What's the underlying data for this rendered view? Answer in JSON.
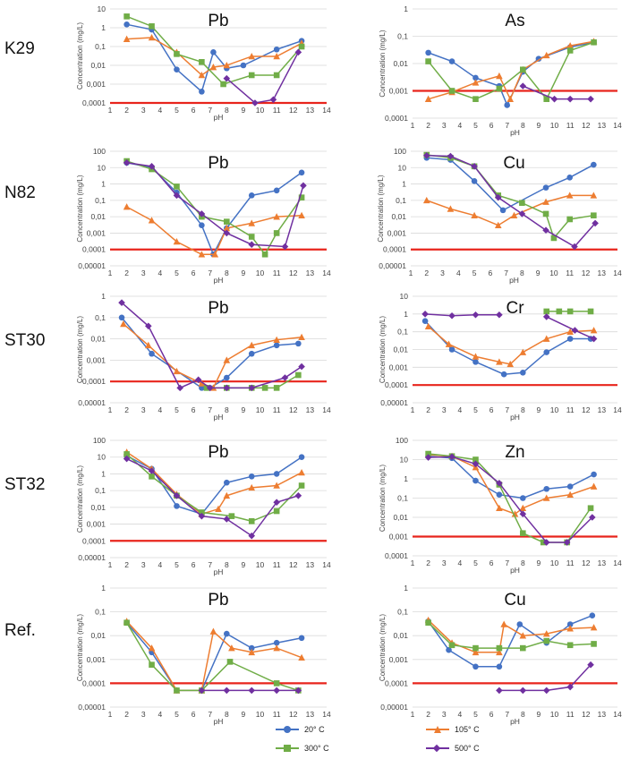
{
  "figure": {
    "row_labels": [
      "K29",
      "N82",
      "ST30",
      "ST32",
      "Ref."
    ],
    "threshold_color": "#e8241c",
    "legend": [
      {
        "key": "c20",
        "label": "20° C",
        "color": "#4472c4",
        "marker": "circle"
      },
      {
        "key": "c105",
        "label": "105° C",
        "color": "#ed7d31",
        "marker": "triangle"
      },
      {
        "key": "c300",
        "label": "300° C",
        "color": "#70ad47",
        "marker": "square"
      },
      {
        "key": "c500",
        "label": "500° C",
        "color": "#7030a0",
        "marker": "diamond"
      }
    ]
  },
  "chart_data": [
    {
      "type": "line",
      "sample": "K29",
      "element": "Pb",
      "xlabel": "pH",
      "ylabel": "Concentration (mg/L)",
      "xlim": [
        1,
        14
      ],
      "y_ticks": [
        "10",
        "1",
        "0,1",
        "0,01",
        "0,001",
        "0,0001"
      ],
      "y_exp": [
        1,
        -4
      ],
      "threshold": 0.0001,
      "series": [
        {
          "key": "c20",
          "x": [
            2,
            3.5,
            5,
            6.5,
            7.2,
            8,
            9,
            11,
            12.5
          ],
          "y": [
            1.5,
            0.8,
            0.006,
            0.0004,
            0.05,
            0.007,
            0.01,
            0.07,
            0.2
          ]
        },
        {
          "key": "c105",
          "x": [
            2,
            3.5,
            5,
            6.5,
            7.2,
            8,
            9.5,
            11,
            12.5
          ],
          "y": [
            0.25,
            0.3,
            0.05,
            0.003,
            0.008,
            0.01,
            0.03,
            0.03,
            0.15
          ]
        },
        {
          "key": "c300",
          "x": [
            2,
            3.5,
            5,
            6.5,
            7.8,
            9.5,
            11,
            12.5
          ],
          "y": [
            4,
            1.2,
            0.04,
            0.015,
            0.001,
            0.003,
            0.003,
            0.1
          ]
        },
        {
          "key": "c500",
          "x": [
            8,
            9.7,
            10.8,
            12.3
          ],
          "y": [
            0.002,
            0.0001,
            0.00015,
            0.05
          ]
        }
      ]
    },
    {
      "type": "line",
      "sample": "K29",
      "element": "As",
      "xlabel": "pH",
      "ylabel": "Concentration (mg/L)",
      "xlim": [
        1,
        14
      ],
      "y_ticks": [
        "1",
        "0,1",
        "0,01",
        "0,001",
        "0,0001"
      ],
      "y_exp": [
        0,
        -4
      ],
      "threshold": 0.001,
      "series": [
        {
          "key": "c20",
          "x": [
            2,
            3.5,
            5,
            6.5,
            7,
            8,
            9,
            11,
            12.5
          ],
          "y": [
            0.025,
            0.012,
            0.003,
            0.0015,
            0.0003,
            0.005,
            0.015,
            0.04,
            0.06
          ]
        },
        {
          "key": "c105",
          "x": [
            2,
            3.5,
            5,
            6.5,
            7.2,
            8,
            9.5,
            11,
            12.5
          ],
          "y": [
            0.0005,
            0.0009,
            0.002,
            0.0035,
            0.0005,
            0.006,
            0.02,
            0.045,
            0.065
          ]
        },
        {
          "key": "c300",
          "x": [
            2,
            3.5,
            5,
            6.5,
            8,
            9.5,
            11,
            12.5
          ],
          "y": [
            0.012,
            0.001,
            0.0005,
            0.0012,
            0.006,
            0.0005,
            0.03,
            0.06
          ]
        },
        {
          "key": "c500",
          "x": [
            8,
            10,
            11,
            12.3
          ],
          "y": [
            0.0015,
            0.0005,
            0.0005,
            0.0005
          ]
        }
      ]
    },
    {
      "type": "line",
      "sample": "N82",
      "element": "Pb",
      "xlabel": "pH",
      "ylabel": "Concentration (mg/L)",
      "xlim": [
        1,
        14
      ],
      "y_ticks": [
        "100",
        "10",
        "1",
        "0,1",
        "0,01",
        "0,001",
        "0,0001",
        "0,00001"
      ],
      "y_exp": [
        2,
        -5
      ],
      "threshold": 0.0001,
      "series": [
        {
          "key": "c20",
          "x": [
            2,
            3.5,
            5,
            6.5,
            7.2,
            8,
            9.5,
            11,
            12.5
          ],
          "y": [
            20,
            10,
            0.3,
            0.003,
            5e-05,
            0.002,
            0.2,
            0.4,
            5
          ]
        },
        {
          "key": "c105",
          "x": [
            2,
            3.5,
            5,
            6.5,
            7.3,
            8,
            9.5,
            11,
            12.5
          ],
          "y": [
            0.04,
            0.006,
            0.0003,
            5e-05,
            5e-05,
            0.002,
            0.004,
            0.01,
            0.012
          ]
        },
        {
          "key": "c300",
          "x": [
            2,
            3.5,
            5,
            6.5,
            8,
            9.5,
            10.3,
            11,
            12.5
          ],
          "y": [
            25,
            8,
            0.7,
            0.01,
            0.005,
            0.0006,
            5e-05,
            0.001,
            0.15
          ]
        },
        {
          "key": "c500",
          "x": [
            2,
            3.5,
            5,
            6.5,
            8,
            9.5,
            11.5,
            12.6
          ],
          "y": [
            20,
            12,
            0.2,
            0.015,
            0.001,
            0.0002,
            0.00015,
            0.8
          ]
        }
      ]
    },
    {
      "type": "line",
      "sample": "N82",
      "element": "Cu",
      "xlabel": "pH",
      "ylabel": "Concentration (mg/L)",
      "xlim": [
        1,
        14
      ],
      "y_ticks": [
        "100",
        "10",
        "1",
        "0,1",
        "0,01",
        "0,001",
        "0,0001",
        "0,00001"
      ],
      "y_exp": [
        2,
        -5
      ],
      "threshold": 0.0001,
      "series": [
        {
          "key": "c20",
          "x": [
            2,
            3.5,
            5,
            6.8,
            9.5,
            11,
            12.5
          ],
          "y": [
            40,
            30,
            1.5,
            0.025,
            0.6,
            2.5,
            15
          ]
        },
        {
          "key": "c105",
          "x": [
            2,
            3.5,
            5,
            6.5,
            7.5,
            9.5,
            11,
            12.5
          ],
          "y": [
            0.1,
            0.03,
            0.012,
            0.003,
            0.012,
            0.08,
            0.2,
            0.2
          ]
        },
        {
          "key": "c300",
          "x": [
            2,
            3.5,
            5,
            6.5,
            8,
            9.5,
            10,
            11,
            12.5
          ],
          "y": [
            60,
            40,
            12,
            0.2,
            0.07,
            0.015,
            0.0005,
            0.007,
            0.012
          ]
        },
        {
          "key": "c500",
          "x": [
            2,
            3.5,
            5,
            6.5,
            8,
            9.5,
            11.3,
            12.6
          ],
          "y": [
            55,
            50,
            12,
            0.15,
            0.015,
            0.0015,
            0.00015,
            0.004
          ]
        }
      ]
    },
    {
      "type": "line",
      "sample": "ST30",
      "element": "Pb",
      "xlabel": "pH",
      "ylabel": "Concentration (mg/L)",
      "xlim": [
        1,
        14
      ],
      "y_ticks": [
        "1",
        "0,1",
        "0,01",
        "0,001",
        "0,0001",
        "0,00001"
      ],
      "y_exp": [
        0,
        -5
      ],
      "threshold": 0.0001,
      "series": [
        {
          "key": "c20",
          "x": [
            1.7,
            3.5,
            6.5,
            7,
            8,
            9.5,
            11,
            12.3
          ],
          "y": [
            0.1,
            0.002,
            5e-05,
            5e-05,
            0.00015,
            0.002,
            0.005,
            0.006
          ]
        },
        {
          "key": "c105",
          "x": [
            1.8,
            3.3,
            5,
            6.5,
            7.2,
            8,
            9.5,
            11,
            12.5
          ],
          "y": [
            0.05,
            0.005,
            0.0003,
            8e-05,
            5e-05,
            0.001,
            0.005,
            0.009,
            0.012
          ]
        },
        {
          "key": "c300",
          "x": [
            6.8,
            8,
            9.5,
            10.3,
            11,
            12.3
          ],
          "y": [
            5e-05,
            5e-05,
            5e-05,
            5e-05,
            5e-05,
            0.0002
          ]
        },
        {
          "key": "c500",
          "x": [
            1.7,
            3.3,
            5.2,
            6.3,
            7,
            8,
            9.5,
            11.5,
            12.5
          ],
          "y": [
            0.5,
            0.04,
            5e-05,
            0.00012,
            5e-05,
            5e-05,
            5e-05,
            0.00015,
            0.0005
          ]
        }
      ]
    },
    {
      "type": "line",
      "sample": "ST30",
      "element": "Cr",
      "xlabel": "pH",
      "ylabel": "Concentration (mg/L)",
      "xlim": [
        1,
        14
      ],
      "y_ticks": [
        "10",
        "1",
        "0,1",
        "0,01",
        "0,001",
        "0,0001",
        "0,00001"
      ],
      "y_exp": [
        1,
        -5
      ],
      "threshold": 0.0001,
      "series": [
        {
          "key": "c20",
          "x": [
            1.8,
            3.5,
            5,
            6.8,
            8,
            9.5,
            11,
            12.3
          ],
          "y": [
            0.4,
            0.01,
            0.002,
            0.0004,
            0.0005,
            0.007,
            0.04,
            0.04
          ]
        },
        {
          "key": "c105",
          "x": [
            2,
            3.3,
            5,
            6.5,
            7.2,
            8,
            9.5,
            11,
            12.5
          ],
          "y": [
            0.2,
            0.02,
            0.004,
            0.002,
            0.0015,
            0.007,
            0.04,
            0.1,
            0.12
          ]
        },
        {
          "key": "c300",
          "x": [
            9.5,
            10.3,
            11,
            12.3
          ],
          "y": [
            1.4,
            1.4,
            1.4,
            1.4
          ]
        },
        {
          "key": "c500",
          "x": [
            1.8,
            3.5,
            5,
            6.5
          ],
          "y": [
            1,
            0.8,
            0.9,
            0.9
          ]
        },
        {
          "key": "c500",
          "x": [
            9.5,
            11.3,
            12.5
          ],
          "y": [
            0.7,
            0.12,
            0.04
          ]
        }
      ]
    },
    {
      "type": "line",
      "sample": "ST32",
      "element": "Pb",
      "xlabel": "pH",
      "ylabel": "Concentration (mg/L)",
      "xlim": [
        1,
        14
      ],
      "y_ticks": [
        "100",
        "10",
        "1",
        "0,1",
        "0,01",
        "0,001",
        "0,0001",
        "0,00001"
      ],
      "y_exp": [
        2,
        -5
      ],
      "threshold": 0.0001,
      "series": [
        {
          "key": "c20",
          "x": [
            2,
            3.5,
            5,
            6.5,
            8,
            9.5,
            11,
            12.5
          ],
          "y": [
            12,
            2,
            0.012,
            0.004,
            0.3,
            0.7,
            1,
            10
          ]
        },
        {
          "key": "c105",
          "x": [
            2,
            3.5,
            5,
            6.5,
            7.5,
            8,
            9.5,
            11,
            12.5
          ],
          "y": [
            20,
            2,
            0.06,
            0.004,
            0.008,
            0.05,
            0.15,
            0.2,
            1.2
          ]
        },
        {
          "key": "c300",
          "x": [
            2,
            3.5,
            5,
            6.5,
            8.3,
            9.5,
            11,
            12.5
          ],
          "y": [
            15,
            0.7,
            0.05,
            0.005,
            0.003,
            0.0015,
            0.006,
            0.2
          ]
        },
        {
          "key": "c500",
          "x": [
            2,
            3.5,
            5,
            6.5,
            8,
            9.5,
            11,
            12.3
          ],
          "y": [
            8,
            1.5,
            0.05,
            0.003,
            0.002,
            0.0002,
            0.02,
            0.05
          ]
        }
      ]
    },
    {
      "type": "line",
      "sample": "ST32",
      "element": "Zn",
      "xlabel": "pH",
      "ylabel": "Concentration (mg/L)",
      "xlim": [
        1,
        14
      ],
      "y_ticks": [
        "100",
        "10",
        "1",
        "0,1",
        "0,01",
        "0,001",
        "0,0001"
      ],
      "y_exp": [
        2,
        -4
      ],
      "threshold": 0.001,
      "series": [
        {
          "key": "c20",
          "x": [
            2,
            3.5,
            5,
            6.5,
            8,
            9.5,
            11,
            12.5
          ],
          "y": [
            15,
            12,
            0.8,
            0.15,
            0.1,
            0.3,
            0.4,
            1.7
          ]
        },
        {
          "key": "c105",
          "x": [
            2,
            3.5,
            5,
            6.5,
            7.5,
            8,
            9.5,
            11,
            12.5
          ],
          "y": [
            18,
            15,
            4,
            0.03,
            0.015,
            0.03,
            0.1,
            0.15,
            0.4
          ]
        },
        {
          "key": "c300",
          "x": [
            2,
            3.5,
            5,
            6.5,
            8,
            9.3,
            10.8,
            12.3
          ],
          "y": [
            20,
            15,
            10,
            0.5,
            0.0015,
            0.0005,
            0.0005,
            0.03
          ]
        },
        {
          "key": "c500",
          "x": [
            2,
            3.5,
            5,
            6.5,
            8,
            9.5,
            10.8,
            12.4
          ],
          "y": [
            13,
            14,
            6,
            0.6,
            0.015,
            0.0005,
            0.0005,
            0.01
          ]
        }
      ]
    },
    {
      "type": "line",
      "sample": "Ref.",
      "element": "Pb",
      "xlabel": "pH",
      "ylabel": "Concentration (mg/L)",
      "xlim": [
        1,
        14
      ],
      "y_ticks": [
        "1",
        "0,1",
        "0,01",
        "0,001",
        "0,0001",
        "0,00001"
      ],
      "y_exp": [
        0,
        -5
      ],
      "threshold": 0.0001,
      "series": [
        {
          "key": "c20",
          "x": [
            2,
            3.5,
            5,
            6.5,
            8,
            9.5,
            11,
            12.5
          ],
          "y": [
            0.035,
            0.002,
            5e-05,
            5e-05,
            0.012,
            0.003,
            0.005,
            0.008
          ]
        },
        {
          "key": "c105",
          "x": [
            2,
            3.5,
            5,
            6.5,
            7.2,
            8.3,
            9.5,
            11,
            12.5
          ],
          "y": [
            0.04,
            0.003,
            5e-05,
            5e-05,
            0.015,
            0.003,
            0.002,
            0.003,
            0.0012
          ]
        },
        {
          "key": "c300",
          "x": [
            2,
            3.5,
            5,
            6.5,
            8.2,
            11,
            12.3
          ],
          "y": [
            0.035,
            0.0006,
            5e-05,
            5e-05,
            0.0008,
            0.0001,
            5e-05
          ]
        },
        {
          "key": "c500",
          "x": [
            6.5,
            8,
            9.5,
            11,
            12.3
          ],
          "y": [
            5e-05,
            5e-05,
            5e-05,
            5e-05,
            5e-05
          ]
        }
      ]
    },
    {
      "type": "line",
      "sample": "Ref.",
      "element": "Cu",
      "xlabel": "pH",
      "ylabel": "Concentration (mg/L)",
      "xlim": [
        1,
        14
      ],
      "y_ticks": [
        "1",
        "0,1",
        "0,01",
        "0,001",
        "0,0001",
        "0,00001"
      ],
      "y_exp": [
        0,
        -5
      ],
      "threshold": 0.0001,
      "series": [
        {
          "key": "c20",
          "x": [
            2,
            3.3,
            5,
            6.5,
            7.8,
            9.5,
            11,
            12.4
          ],
          "y": [
            0.04,
            0.0025,
            0.0005,
            0.0005,
            0.03,
            0.005,
            0.03,
            0.07
          ]
        },
        {
          "key": "c105",
          "x": [
            2,
            3.5,
            5,
            6.5,
            6.8,
            8,
            9.5,
            11,
            12.5
          ],
          "y": [
            0.045,
            0.005,
            0.002,
            0.002,
            0.03,
            0.01,
            0.012,
            0.02,
            0.022
          ]
        },
        {
          "key": "c300",
          "x": [
            2,
            3.5,
            5,
            6.5,
            8,
            9.5,
            11,
            12.5
          ],
          "y": [
            0.035,
            0.004,
            0.003,
            0.003,
            0.003,
            0.006,
            0.004,
            0.0045
          ]
        },
        {
          "key": "c500",
          "x": [
            6.5,
            8,
            9.5,
            11,
            12.3
          ],
          "y": [
            5e-05,
            5e-05,
            5e-05,
            7e-05,
            0.0006
          ]
        }
      ]
    }
  ]
}
